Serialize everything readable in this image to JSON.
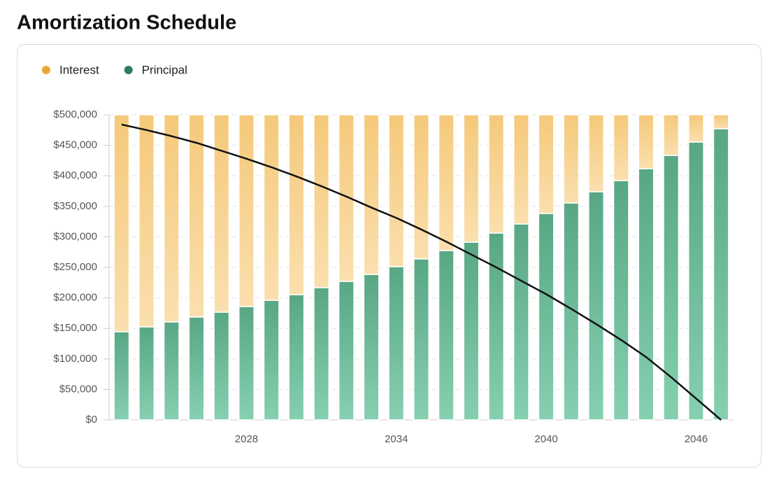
{
  "chart_data": {
    "type": "bar",
    "title": "Amortization Schedule",
    "stacked": true,
    "categories": [
      null,
      null,
      null,
      null,
      null,
      "2028",
      null,
      null,
      null,
      null,
      null,
      "2034",
      null,
      null,
      null,
      null,
      null,
      "2040",
      null,
      null,
      null,
      null,
      null,
      "2046",
      null
    ],
    "series": [
      {
        "name": "Interest",
        "color": "#e8a838",
        "gradient": [
          "#f5c97a",
          "#fadfae"
        ],
        "values": [
          355500,
          347500,
          339400,
          331400,
          323400,
          314200,
          303900,
          294700,
          283300,
          272900,
          261500,
          248900,
          236200,
          222500,
          208700,
          193800,
          178900,
          161700,
          144500,
          126100,
          107800,
          88300,
          66500,
          44700,
          22900
        ]
      },
      {
        "name": "Principal",
        "color": "#2e7d5a",
        "gradient": [
          "#58a784",
          "#86d0b1"
        ],
        "values": [
          144500,
          152500,
          160600,
          168600,
          176600,
          185800,
          196100,
          205300,
          216700,
          227100,
          238500,
          251100,
          263800,
          277500,
          291300,
          306200,
          321100,
          338300,
          355500,
          373900,
          392200,
          411700,
          433500,
          455300,
          477100
        ]
      },
      {
        "type": "line",
        "color": "#111111",
        "values": [
          484000,
          475000,
          465000,
          454000,
          441000,
          428000,
          414000,
          399000,
          383000,
          366000,
          348000,
          331000,
          312000,
          292000,
          271000,
          250000,
          228000,
          206000,
          182000,
          157000,
          131000,
          103000,
          70000,
          35000,
          0
        ]
      }
    ],
    "ylim": [
      0,
      500000
    ],
    "yticks": [
      {
        "value": 0,
        "label": "$0"
      },
      {
        "value": 50000,
        "label": "$50,000"
      },
      {
        "value": 100000,
        "label": "$100,000"
      },
      {
        "value": 150000,
        "label": "$150,000"
      },
      {
        "value": 200000,
        "label": "$200,000"
      },
      {
        "value": 250000,
        "label": "$250,000"
      },
      {
        "value": 300000,
        "label": "$300,000"
      },
      {
        "value": 350000,
        "label": "$350,000"
      },
      {
        "value": 400000,
        "label": "$400,000"
      },
      {
        "value": 450000,
        "label": "$450,000"
      },
      {
        "value": 500000,
        "label": "$500,000"
      }
    ],
    "grid": true,
    "legend": "top-left"
  }
}
